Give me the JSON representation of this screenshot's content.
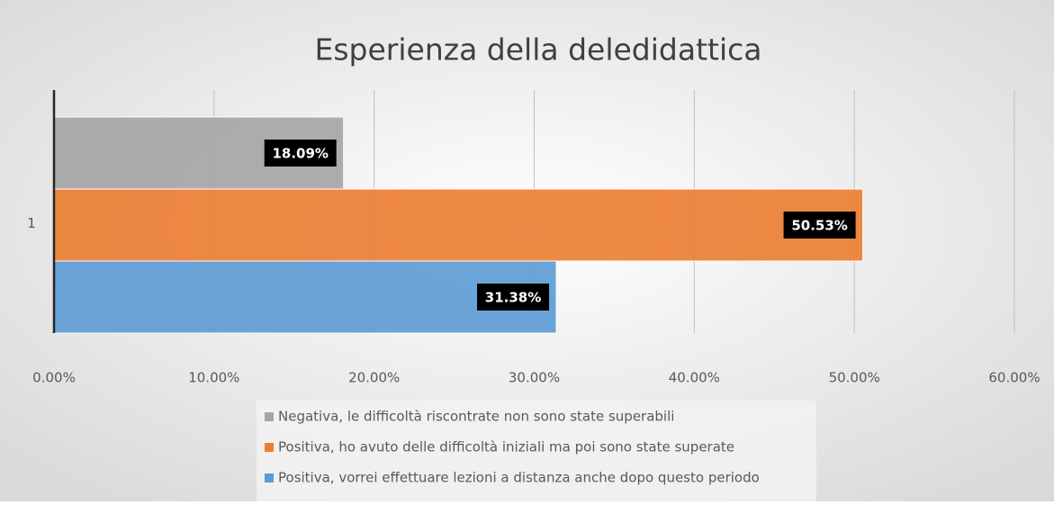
{
  "chart_data": {
    "type": "hbar",
    "title": "Esperienza della deledidattica",
    "categories": [
      "1"
    ],
    "series": [
      {
        "name": "Negativa, le difficoltà riscontrate non sono state superabili",
        "color": "#a5a5a5",
        "values": [
          18.09
        ],
        "value_labels": [
          "18.09%"
        ]
      },
      {
        "name": "Positiva, ho avuto delle difficoltà iniziali ma poi sono state superate",
        "color": "#ed7d31",
        "values": [
          50.53
        ],
        "value_labels": [
          "50.53%"
        ]
      },
      {
        "name": "Positiva, vorrei effettuare lezioni a distanza anche dopo questo periodo",
        "color": "#5b9bd5",
        "values": [
          31.38
        ],
        "value_labels": [
          "31.38%"
        ]
      }
    ],
    "xlim": [
      0,
      60
    ],
    "xticks": [
      {
        "value": 0,
        "label": "0.00%"
      },
      {
        "value": 10,
        "label": "10.00%"
      },
      {
        "value": 20,
        "label": "20.00%"
      },
      {
        "value": 30,
        "label": "30.00%"
      },
      {
        "value": 40,
        "label": "40.00%"
      },
      {
        "value": 50,
        "label": "50.00%"
      },
      {
        "value": 60,
        "label": "60.00%"
      }
    ],
    "grid": true,
    "legend": "bottom"
  }
}
